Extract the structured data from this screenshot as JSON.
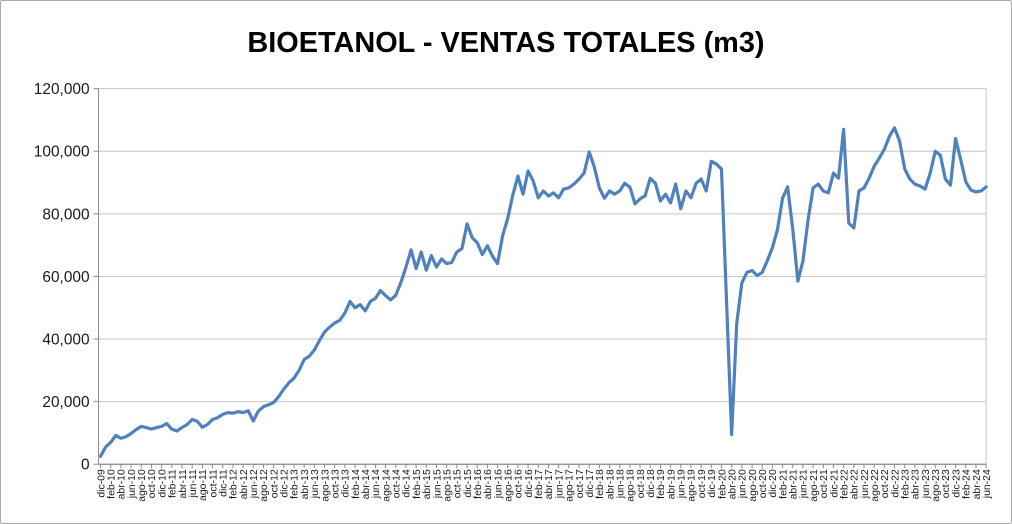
{
  "chart_data": {
    "type": "line",
    "title": "BIOETANOL - VENTAS TOTALES (m3)",
    "xlabel": "",
    "ylabel": "",
    "x_range": "dic-09 to jun-24, monthly data points",
    "points_per_tick": 2,
    "ylim": [
      0,
      120000
    ],
    "y_ticks": [
      0,
      20000,
      40000,
      60000,
      80000,
      100000,
      120000
    ],
    "y_tick_labels": [
      "0",
      "20,000",
      "40,000",
      "60,000",
      "80,000",
      "100,000",
      "120,000"
    ],
    "grid": true,
    "legend_position": "none",
    "line_color": "#4F81BD",
    "gridline_color": "#c6c6c6",
    "axis_color": "#898989",
    "border_color": "#ababab",
    "tick_labels": [
      "dic-09",
      "feb-10",
      "abr-10",
      "jun-10",
      "ago-10",
      "oct-10",
      "dic-10",
      "feb-11",
      "abr-11",
      "jun-11",
      "ago-11",
      "oct-11",
      "dic-11",
      "feb-12",
      "abr-12",
      "jun-12",
      "ago-12",
      "oct-12",
      "dic-12",
      "feb-13",
      "abr-13",
      "jun-13",
      "ago-13",
      "oct-13",
      "dic-13",
      "feb-14",
      "abr-14",
      "jun-14",
      "ago-14",
      "oct-14",
      "dic-14",
      "feb-15",
      "abr-15",
      "jun-15",
      "ago-15",
      "oct-15",
      "dic-15",
      "feb-16",
      "abr-16",
      "jun-16",
      "ago-16",
      "oct-16",
      "dic-16",
      "feb-17",
      "abr-17",
      "jun-17",
      "ago-17",
      "oct-17",
      "dic-17",
      "feb-18",
      "abr-18",
      "jun-18",
      "ago-18",
      "oct-18",
      "dic-18",
      "feb-19",
      "abr-19",
      "jun-19",
      "ago-19",
      "oct-19",
      "dic-19",
      "feb-20",
      "abr-20",
      "jun-20",
      "ago-20",
      "oct-20",
      "dic-20",
      "feb-21",
      "abr-21",
      "jun-21",
      "ago-21",
      "oct-21",
      "dic-21",
      "feb-22",
      "abr-22",
      "jun-22",
      "ago-22",
      "oct-22",
      "dic-22",
      "feb-23",
      "abr-23",
      "jun-23",
      "ago-23",
      "oct-23",
      "dic-23",
      "feb-24",
      "abr-24",
      "jun-24"
    ],
    "values": [
      2500,
      5500,
      7000,
      9200,
      8300,
      8800,
      9800,
      11100,
      12100,
      11700,
      11200,
      11700,
      12100,
      13000,
      11200,
      10600,
      11700,
      12700,
      14300,
      13700,
      11800,
      12700,
      14300,
      14900,
      15900,
      16500,
      16300,
      16800,
      16500,
      17100,
      13800,
      17000,
      18400,
      19000,
      19700,
      21600,
      24000,
      26000,
      27500,
      30000,
      33500,
      34500,
      36500,
      39500,
      42200,
      43800,
      45100,
      46000,
      48300,
      52000,
      50000,
      51000,
      49000,
      52000,
      53000,
      55500,
      53900,
      52500,
      54000,
      58000,
      63000,
      68500,
      62500,
      67800,
      62000,
      66700,
      63000,
      65600,
      64100,
      64500,
      67800,
      68900,
      76800,
      72400,
      70800,
      67000,
      69800,
      66500,
      64100,
      73000,
      78500,
      86000,
      92100,
      86300,
      93700,
      90500,
      85100,
      87300,
      85700,
      86700,
      85100,
      87900,
      88300,
      89500,
      91100,
      93000,
      99800,
      95000,
      88300,
      85000,
      87300,
      86300,
      87300,
      89800,
      88500,
      83200,
      84800,
      85800,
      91400,
      89800,
      84100,
      86300,
      83500,
      89500,
      81600,
      87300,
      85100,
      89800,
      91100,
      87300,
      96800,
      95900,
      94300,
      52000,
      9500,
      45000,
      58000,
      61300,
      61900,
      60300,
      61300,
      65000,
      69200,
      75000,
      85000,
      88600,
      75000,
      58500,
      65000,
      78000,
      88300,
      89500,
      87300,
      86700,
      93000,
      91400,
      107000,
      77000,
      75500,
      87300,
      88300,
      91400,
      95200,
      97800,
      100600,
      104800,
      107500,
      103200,
      94300,
      91100,
      89500,
      88900,
      87900,
      93000,
      100000,
      98700,
      91100,
      89200,
      104100,
      97200,
      90200,
      87600,
      87000,
      87300,
      88600
    ]
  }
}
